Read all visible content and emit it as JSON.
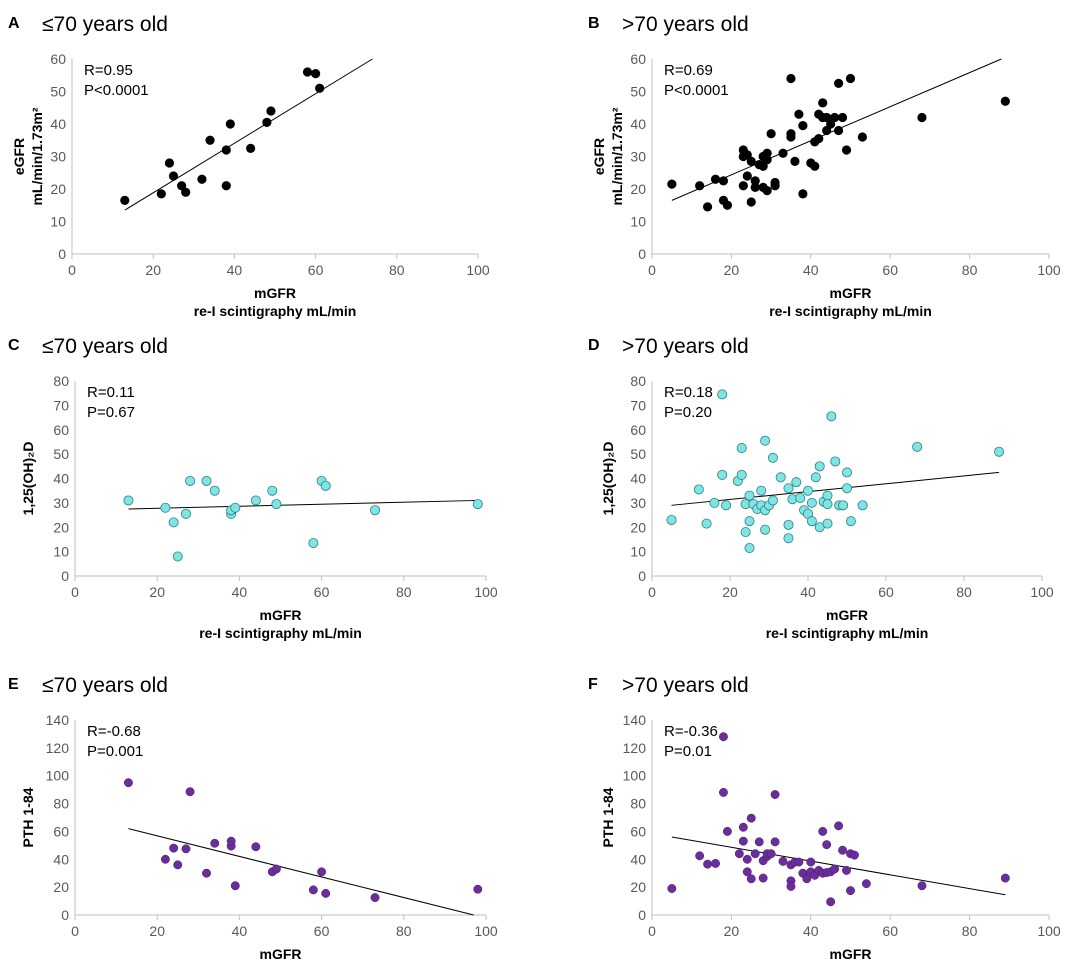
{
  "colors": {
    "black": "#000000",
    "cyan": "#7fe5e3",
    "purple": "#6a2d9a",
    "axis": "#bfbfbf"
  },
  "chart_data": [
    {
      "id": "A",
      "type": "scatter",
      "panel_label": "A",
      "title": "≤70 years old",
      "r_text": "R=0.95",
      "p_text": "P<0.0001",
      "ylabel": [
        "eGFR",
        "mL/min/1.73m²"
      ],
      "xlabel": [
        "mGFR",
        "re-I scintigraphy mL/min"
      ],
      "xlim": [
        0,
        100
      ],
      "ylim": [
        0,
        60
      ],
      "xticks": [
        0,
        20,
        40,
        60,
        80,
        100
      ],
      "yticks": [
        0,
        10,
        20,
        30,
        40,
        50,
        60
      ],
      "marker": "black",
      "trendline": [
        [
          13,
          13.5
        ],
        [
          74,
          60
        ]
      ],
      "points": [
        [
          13,
          16.5
        ],
        [
          22,
          18.5
        ],
        [
          24,
          28
        ],
        [
          25,
          24
        ],
        [
          27,
          21
        ],
        [
          28,
          19
        ],
        [
          32,
          23
        ],
        [
          34,
          35
        ],
        [
          38,
          21
        ],
        [
          38,
          32
        ],
        [
          39,
          40
        ],
        [
          44,
          32.5
        ],
        [
          48,
          40.5
        ],
        [
          49,
          44
        ],
        [
          58,
          56
        ],
        [
          60,
          55.5
        ],
        [
          61,
          51
        ]
      ]
    },
    {
      "id": "B",
      "type": "scatter",
      "panel_label": "B",
      "title": ">70 years old",
      "r_text": "R=0.69",
      "p_text": "P<0.0001",
      "ylabel": [
        "eGFR",
        "mL/min/1.73m²"
      ],
      "xlabel": [
        "mGFR",
        "re-I scintigraphy mL/min"
      ],
      "xlim": [
        0,
        100
      ],
      "ylim": [
        0,
        60
      ],
      "xticks": [
        0,
        20,
        40,
        60,
        80,
        100
      ],
      "yticks": [
        0,
        10,
        20,
        30,
        40,
        50,
        60
      ],
      "marker": "black",
      "trendline": [
        [
          5,
          16.5
        ],
        [
          88,
          60
        ]
      ],
      "points": [
        [
          5,
          21.5
        ],
        [
          12,
          21
        ],
        [
          14,
          14.5
        ],
        [
          16,
          23
        ],
        [
          18,
          16.5
        ],
        [
          18,
          22.5
        ],
        [
          19,
          15
        ],
        [
          23,
          21
        ],
        [
          23,
          32
        ],
        [
          23,
          30
        ],
        [
          24,
          30.5
        ],
        [
          24,
          24
        ],
        [
          25,
          28.5
        ],
        [
          25,
          16
        ],
        [
          26,
          20.5
        ],
        [
          26,
          22.5
        ],
        [
          27,
          27.5
        ],
        [
          28,
          30
        ],
        [
          28,
          27
        ],
        [
          28,
          20.5
        ],
        [
          29,
          31
        ],
        [
          29,
          29
        ],
        [
          29,
          19.5
        ],
        [
          30,
          37
        ],
        [
          31,
          22
        ],
        [
          31,
          21
        ],
        [
          33,
          31
        ],
        [
          35,
          54
        ],
        [
          35,
          37
        ],
        [
          35,
          36
        ],
        [
          36,
          28.5
        ],
        [
          37,
          43
        ],
        [
          38,
          18.5
        ],
        [
          38,
          39.5
        ],
        [
          40,
          28
        ],
        [
          41,
          27
        ],
        [
          41,
          34.5
        ],
        [
          42,
          35.5
        ],
        [
          42,
          43
        ],
        [
          43,
          46.5
        ],
        [
          43,
          42
        ],
        [
          44,
          38
        ],
        [
          44,
          42
        ],
        [
          45,
          40
        ],
        [
          46,
          42
        ],
        [
          47,
          38
        ],
        [
          47,
          52.5
        ],
        [
          48,
          42
        ],
        [
          49,
          32
        ],
        [
          50,
          54
        ],
        [
          53,
          36
        ],
        [
          68,
          42
        ],
        [
          89,
          47
        ]
      ]
    },
    {
      "id": "C",
      "type": "scatter",
      "panel_label": "C",
      "title": "≤70 years old",
      "r_text": "R=0.11",
      "p_text": "P=0.67",
      "ylabel": [
        "1,25(OH)₂D"
      ],
      "xlabel": [
        "mGFR",
        "re-I scintigraphy mL/min"
      ],
      "xlim": [
        0,
        100
      ],
      "ylim": [
        0,
        80
      ],
      "xticks": [
        0,
        20,
        40,
        60,
        80,
        100
      ],
      "yticks": [
        0,
        10,
        20,
        30,
        40,
        50,
        60,
        70,
        80
      ],
      "marker": "cyan",
      "trendline": [
        [
          13,
          27.5
        ],
        [
          98,
          31
        ]
      ],
      "points": [
        [
          13,
          31
        ],
        [
          22,
          28
        ],
        [
          24,
          22
        ],
        [
          25,
          8
        ],
        [
          27,
          25.5
        ],
        [
          28,
          39
        ],
        [
          32,
          39
        ],
        [
          34,
          35
        ],
        [
          38,
          25.5
        ],
        [
          38,
          27
        ],
        [
          39,
          28
        ],
        [
          44,
          31
        ],
        [
          48,
          35
        ],
        [
          49,
          29.5
        ],
        [
          58,
          13.5
        ],
        [
          60,
          39
        ],
        [
          61,
          37
        ],
        [
          73,
          27
        ],
        [
          98,
          29.5
        ]
      ]
    },
    {
      "id": "D",
      "type": "scatter",
      "panel_label": "D",
      "title": ">70 years old",
      "r_text": "R=0.18",
      "p_text": "P=0.20",
      "ylabel": [
        "1,25(OH)₂D"
      ],
      "xlabel": [
        "mGFR",
        "re-I scintigraphy mL/min"
      ],
      "xlim": [
        0,
        100
      ],
      "ylim": [
        0,
        80
      ],
      "xticks": [
        0,
        20,
        40,
        60,
        80,
        100
      ],
      "yticks": [
        0,
        10,
        20,
        30,
        40,
        50,
        60,
        70,
        80
      ],
      "marker": "cyan",
      "trendline": [
        [
          5,
          29
        ],
        [
          89,
          42.5
        ]
      ],
      "points": [
        [
          5,
          23
        ],
        [
          12,
          35.5
        ],
        [
          14,
          21.5
        ],
        [
          16,
          30
        ],
        [
          18,
          74.5
        ],
        [
          18,
          41.5
        ],
        [
          19,
          29
        ],
        [
          22,
          39
        ],
        [
          23,
          52.5
        ],
        [
          23,
          41.5
        ],
        [
          24,
          18
        ],
        [
          24,
          29.5
        ],
        [
          25,
          11.5
        ],
        [
          25,
          22.5
        ],
        [
          25,
          33
        ],
        [
          26,
          29.5
        ],
        [
          27,
          27.5
        ],
        [
          28,
          35
        ],
        [
          28,
          29
        ],
        [
          29,
          55.5
        ],
        [
          29,
          19
        ],
        [
          29,
          27
        ],
        [
          30,
          29
        ],
        [
          31,
          48.5
        ],
        [
          31,
          31
        ],
        [
          33,
          40.5
        ],
        [
          35,
          15.5
        ],
        [
          35,
          21
        ],
        [
          35,
          36
        ],
        [
          36,
          31.5
        ],
        [
          37,
          38.5
        ],
        [
          38,
          32
        ],
        [
          39,
          27
        ],
        [
          40,
          25.5
        ],
        [
          40,
          35
        ],
        [
          41,
          30
        ],
        [
          41,
          22.5
        ],
        [
          42,
          40.5
        ],
        [
          43,
          20
        ],
        [
          43,
          45
        ],
        [
          44,
          30.5
        ],
        [
          45,
          21.5
        ],
        [
          45,
          33
        ],
        [
          45,
          29.5
        ],
        [
          46,
          65.5
        ],
        [
          47,
          47
        ],
        [
          48,
          29
        ],
        [
          49,
          29
        ],
        [
          50,
          42.5
        ],
        [
          50,
          36
        ],
        [
          51,
          22.5
        ],
        [
          54,
          29
        ],
        [
          68,
          53
        ],
        [
          89,
          51
        ]
      ]
    },
    {
      "id": "E",
      "type": "scatter",
      "panel_label": "E",
      "title": "≤70 years old",
      "r_text": "R=-0.68",
      "p_text": "P=0.001",
      "ylabel": [
        "PTH 1-84"
      ],
      "xlabel": [
        "mGFR"
      ],
      "xlim": [
        0,
        100
      ],
      "ylim": [
        0,
        140
      ],
      "xticks": [
        0,
        20,
        40,
        60,
        80,
        100
      ],
      "yticks": [
        0,
        20,
        40,
        60,
        80,
        100,
        120,
        140
      ],
      "marker": "purple",
      "trendline": [
        [
          13,
          62
        ],
        [
          97,
          0
        ]
      ],
      "points": [
        [
          13,
          95
        ],
        [
          22,
          40
        ],
        [
          24,
          48
        ],
        [
          25,
          36
        ],
        [
          27,
          47.5
        ],
        [
          28,
          88.5
        ],
        [
          32,
          30
        ],
        [
          34,
          51.5
        ],
        [
          38,
          49.5
        ],
        [
          38,
          53
        ],
        [
          39,
          21
        ],
        [
          44,
          49
        ],
        [
          48,
          31
        ],
        [
          49,
          33
        ],
        [
          58,
          18
        ],
        [
          60,
          31
        ],
        [
          61,
          15.5
        ],
        [
          73,
          12.5
        ],
        [
          98,
          18.5
        ]
      ]
    },
    {
      "id": "F",
      "type": "scatter",
      "panel_label": "F",
      "title": ">70 years old",
      "r_text": "R=-0.36",
      "p_text": "P=0.01",
      "ylabel": [
        "PTH 1-84"
      ],
      "xlabel": [
        "mGFR"
      ],
      "xlim": [
        0,
        100
      ],
      "ylim": [
        0,
        140
      ],
      "xticks": [
        0,
        20,
        40,
        60,
        80,
        100
      ],
      "yticks": [
        0,
        20,
        40,
        60,
        80,
        100,
        120,
        140
      ],
      "marker": "purple",
      "trendline": [
        [
          5,
          56
        ],
        [
          89,
          14.5
        ]
      ],
      "points": [
        [
          5,
          19
        ],
        [
          12,
          42.5
        ],
        [
          14,
          36.5
        ],
        [
          16,
          37
        ],
        [
          18,
          128
        ],
        [
          18,
          88
        ],
        [
          19,
          60
        ],
        [
          22,
          44
        ],
        [
          23,
          63
        ],
        [
          23,
          53
        ],
        [
          24,
          40
        ],
        [
          24,
          31
        ],
        [
          25,
          69.5
        ],
        [
          25,
          26
        ],
        [
          26,
          44
        ],
        [
          27,
          52.5
        ],
        [
          28,
          26.5
        ],
        [
          28,
          39
        ],
        [
          29,
          42
        ],
        [
          29,
          44
        ],
        [
          30,
          44
        ],
        [
          31,
          86.5
        ],
        [
          31,
          52.5
        ],
        [
          33,
          38.5
        ],
        [
          35,
          24.5
        ],
        [
          35,
          20.5
        ],
        [
          35,
          36
        ],
        [
          36,
          38
        ],
        [
          37,
          38
        ],
        [
          38,
          30
        ],
        [
          39,
          26
        ],
        [
          40,
          31
        ],
        [
          40,
          38
        ],
        [
          41,
          28.5
        ],
        [
          42,
          32
        ],
        [
          43,
          60
        ],
        [
          43,
          30
        ],
        [
          44,
          30.5
        ],
        [
          44,
          50.5
        ],
        [
          45,
          9.5
        ],
        [
          45,
          31
        ],
        [
          46,
          33
        ],
        [
          47,
          64
        ],
        [
          48,
          46.5
        ],
        [
          49,
          32
        ],
        [
          50,
          44
        ],
        [
          50,
          17.5
        ],
        [
          51,
          43
        ],
        [
          54,
          22.5
        ],
        [
          68,
          21
        ],
        [
          89,
          26.5
        ]
      ]
    }
  ]
}
